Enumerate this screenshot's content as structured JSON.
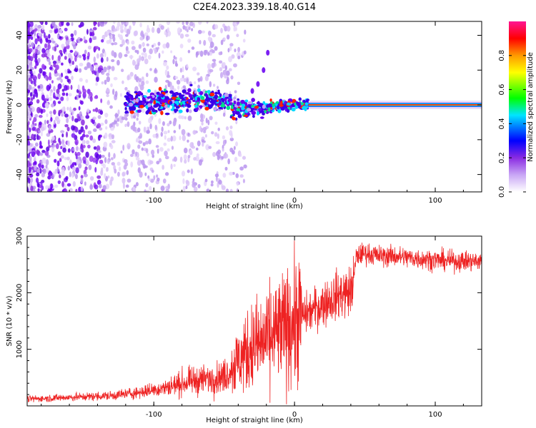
{
  "title": "C2E4.2023.339.18.40.G14",
  "colors": {
    "snr_line": "#ee2222",
    "axis": "#000000",
    "background": "#ffffff"
  },
  "chart_data": [
    {
      "type": "heatmap",
      "title": "C2E4.2023.339.18.40.G14",
      "xlabel": "Height of straight line (km)",
      "ylabel": "Frequency (Hz)",
      "xlim": [
        -190,
        133
      ],
      "ylim": [
        -50,
        48
      ],
      "x_ticks": [
        -100,
        0,
        100
      ],
      "y_ticks": [
        -40,
        -20,
        0,
        20,
        40
      ],
      "colorbar": {
        "label": "Normalized spectral amplitude",
        "range": [
          0,
          1
        ],
        "ticks": [
          "0.0",
          "0.2",
          "0.4",
          "0.6",
          "0.8"
        ],
        "colormap": [
          "#ffffff",
          "#8a2be2",
          "#0000ff",
          "#00e5ff",
          "#00ff00",
          "#ffff00",
          "#ff9900",
          "#ff0000",
          "#ff1493"
        ]
      },
      "features": {
        "scatter_region_km": [
          -190,
          -55
        ],
        "central_band_km": [
          -120,
          10
        ],
        "steady_line_km": [
          10,
          133
        ],
        "steady_line_freq_hz": 0,
        "arc_points": [
          [
            -30,
            8
          ],
          [
            -26,
            12
          ],
          [
            -22,
            20
          ],
          [
            -19,
            30
          ]
        ]
      }
    },
    {
      "type": "line",
      "xlabel": "Height of straight line (km)",
      "ylabel": "SNR (10 * v/v)",
      "xlim": [
        -190,
        133
      ],
      "ylim": [
        0,
        3000
      ],
      "x_ticks": [
        -100,
        0,
        100
      ],
      "y_ticks": [
        1000,
        2000,
        3000
      ],
      "series": [
        {
          "color": "#ee2222",
          "x": [
            -190,
            -170,
            -150,
            -130,
            -110,
            -90,
            -80,
            -70,
            -60,
            -50,
            -40,
            -30,
            -20,
            -10,
            0,
            10,
            20,
            30,
            40,
            42,
            44,
            50,
            60,
            70,
            80,
            90,
            100,
            110,
            120,
            133
          ],
          "y": [
            120,
            140,
            160,
            180,
            240,
            330,
            400,
            450,
            480,
            520,
            800,
            1050,
            1150,
            1300,
            1500,
            1650,
            1800,
            1950,
            2020,
            2250,
            2650,
            2700,
            2650,
            2650,
            2620,
            2600,
            2580,
            2560,
            2560,
            2550
          ]
        }
      ]
    }
  ]
}
